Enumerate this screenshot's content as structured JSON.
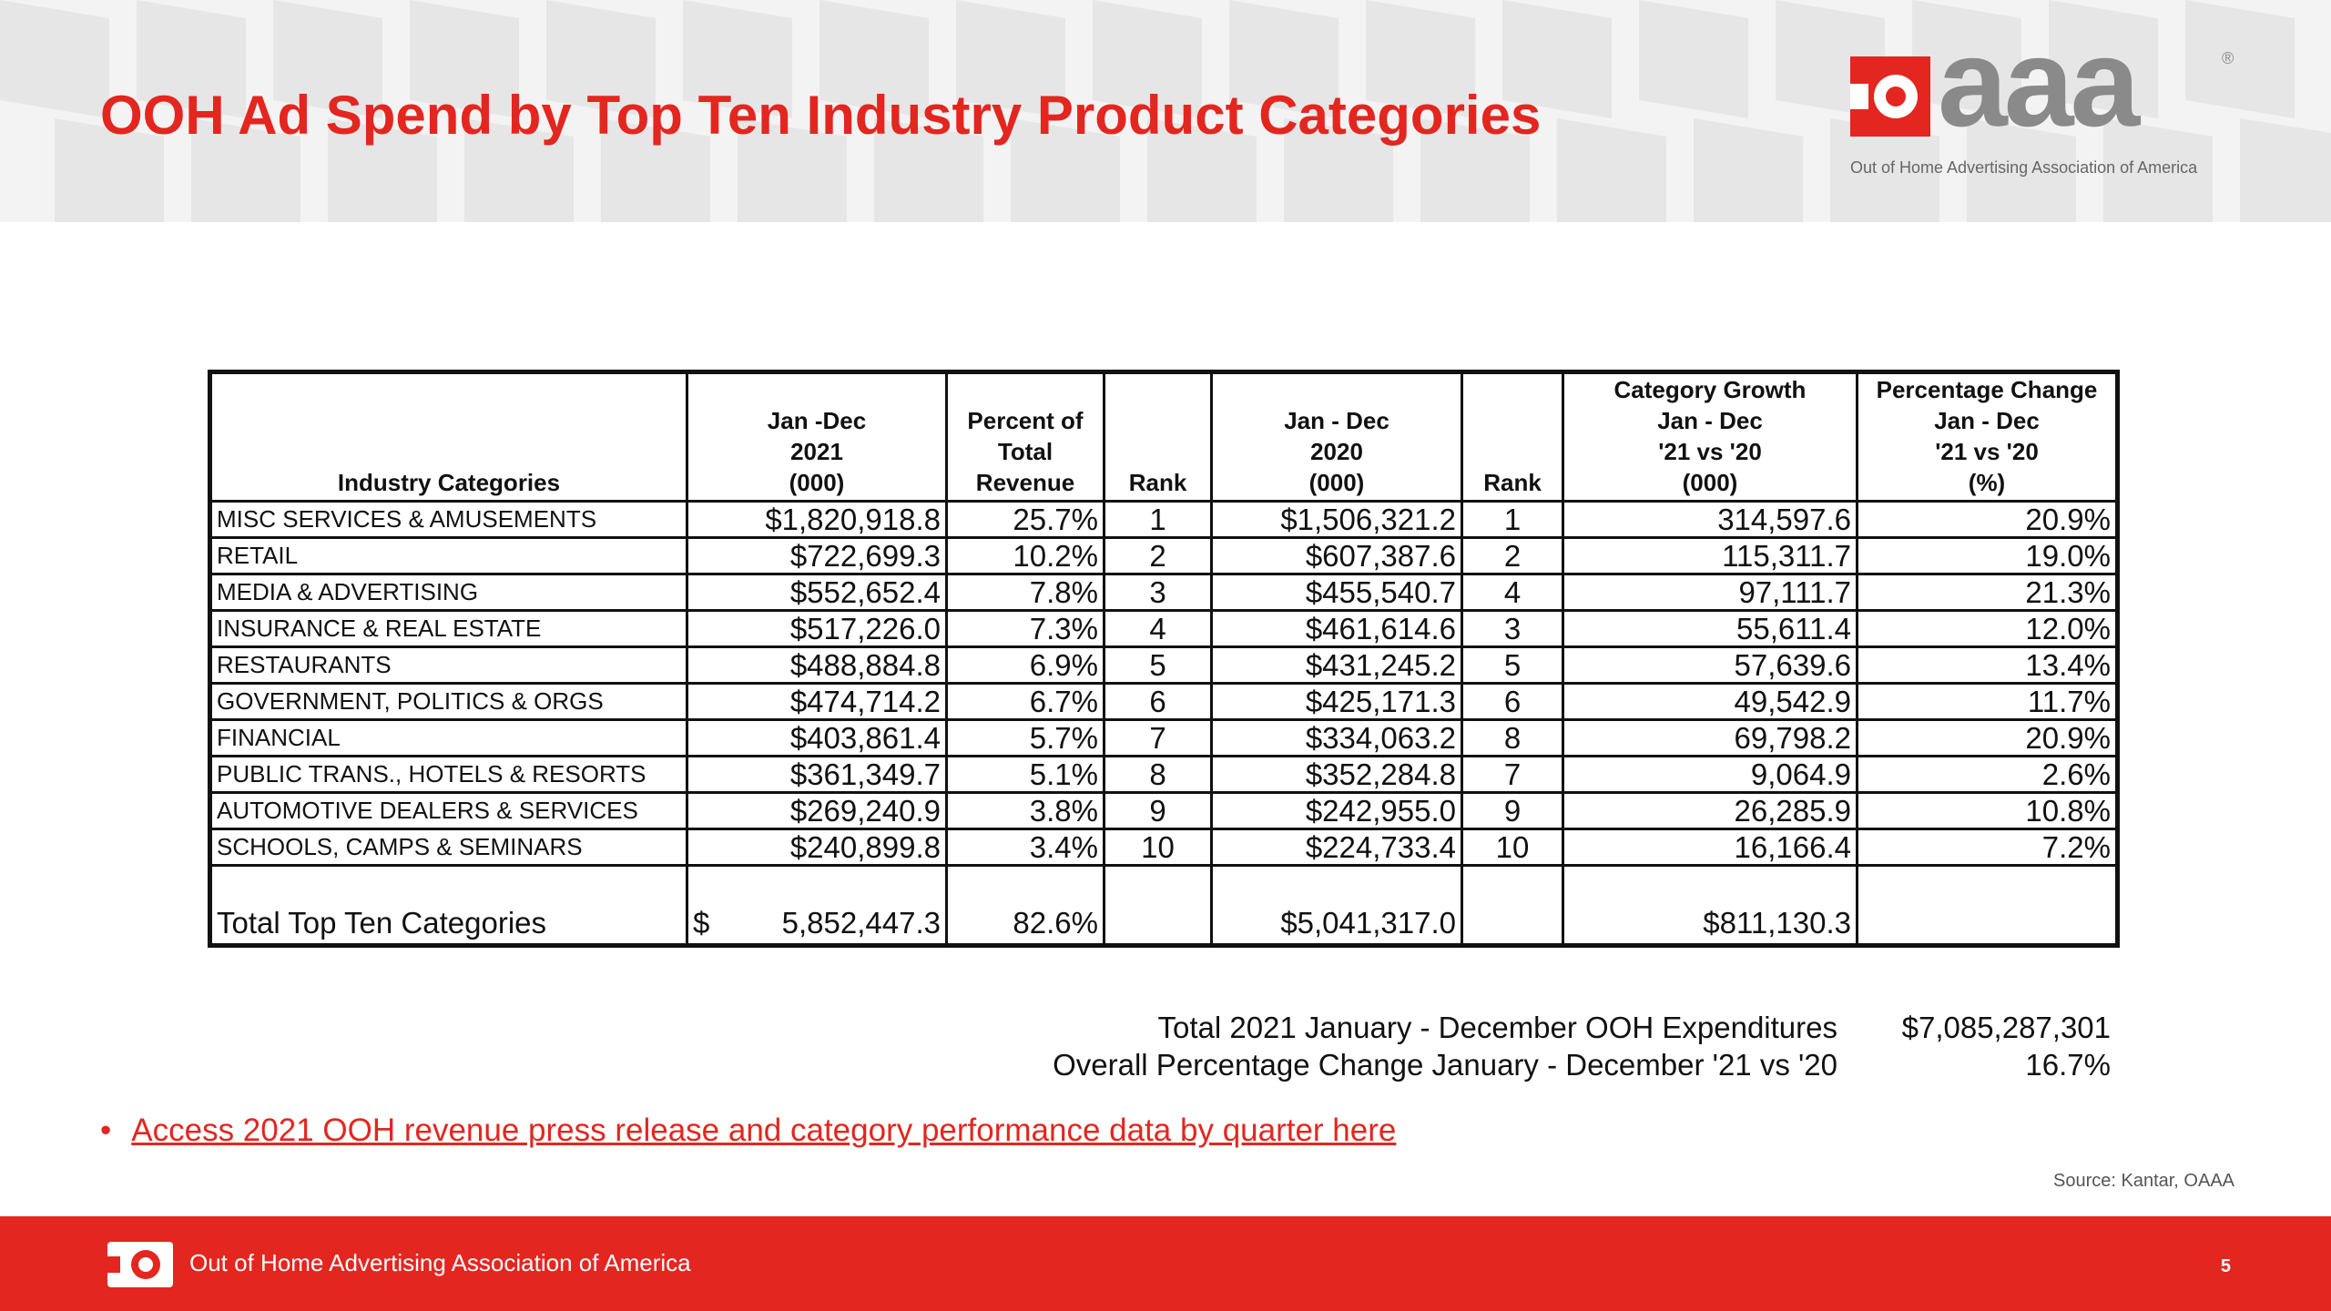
{
  "title": "OOH Ad Spend by Top Ten Industry Product Categories",
  "logo": {
    "wordmark": "aaa",
    "registered": "®",
    "tagline": "Out of Home Advertising Association of America"
  },
  "table": {
    "headers": [
      [
        "Industry Categories"
      ],
      [
        "Jan -Dec",
        "2021",
        "(000)"
      ],
      [
        "Percent of",
        "Total",
        "Revenue"
      ],
      [
        "Rank"
      ],
      [
        "Jan - Dec",
        "2020",
        "(000)"
      ],
      [
        "Rank"
      ],
      [
        "Category Growth",
        "Jan - Dec",
        "'21 vs '20",
        "(000)"
      ],
      [
        "Percentage Change",
        "Jan - Dec",
        "'21 vs '20",
        "(%)"
      ]
    ],
    "rows": [
      [
        "MISC SERVICES & AMUSEMENTS",
        "$1,820,918.8",
        "25.7%",
        "1",
        "$1,506,321.2",
        "1",
        "314,597.6",
        "20.9%"
      ],
      [
        "RETAIL",
        "$722,699.3",
        "10.2%",
        "2",
        "$607,387.6",
        "2",
        "115,311.7",
        "19.0%"
      ],
      [
        "MEDIA & ADVERTISING",
        "$552,652.4",
        "7.8%",
        "3",
        "$455,540.7",
        "4",
        "97,111.7",
        "21.3%"
      ],
      [
        "INSURANCE & REAL ESTATE",
        "$517,226.0",
        "7.3%",
        "4",
        "$461,614.6",
        "3",
        "55,611.4",
        "12.0%"
      ],
      [
        "RESTAURANTS",
        "$488,884.8",
        "6.9%",
        "5",
        "$431,245.2",
        "5",
        "57,639.6",
        "13.4%"
      ],
      [
        "GOVERNMENT, POLITICS & ORGS",
        "$474,714.2",
        "6.7%",
        "6",
        "$425,171.3",
        "6",
        "49,542.9",
        "11.7%"
      ],
      [
        "FINANCIAL",
        "$403,861.4",
        "5.7%",
        "7",
        "$334,063.2",
        "8",
        "69,798.2",
        "20.9%"
      ],
      [
        "PUBLIC TRANS., HOTELS & RESORTS",
        "$361,349.7",
        "5.1%",
        "8",
        "$352,284.8",
        "7",
        "9,064.9",
        "2.6%"
      ],
      [
        "AUTOMOTIVE DEALERS & SERVICES",
        "$269,240.9",
        "3.8%",
        "9",
        "$242,955.0",
        "9",
        "26,285.9",
        "10.8%"
      ],
      [
        "SCHOOLS, CAMPS & SEMINARS",
        "$240,899.8",
        "3.4%",
        "10",
        "$224,733.4",
        "10",
        "16,166.4",
        "7.2%"
      ]
    ],
    "total": {
      "label": "Total Top Ten Categories",
      "dollar_sign": "$",
      "spend_2021": "5,852,447.3",
      "percent": "82.6%",
      "rank_2021": "",
      "spend_2020": "$5,041,317.0",
      "rank_2020": "",
      "growth": "$811,130.3",
      "pct_change": ""
    }
  },
  "summary": {
    "total_label": "Total 2021 January - December OOH Expenditures",
    "total_value": "$7,085,287,301",
    "change_label": "Overall Percentage Change January - December '21 vs '20",
    "change_value": "16.7%"
  },
  "link": {
    "bullet": "•",
    "text": "Access 2021 OOH revenue press release and category performance data by quarter here"
  },
  "source": "Source: Kantar, OAAA",
  "footer": {
    "org": "Out of Home Advertising Association of America",
    "page": "5"
  },
  "colors": {
    "brand_red": "#e3261f",
    "logo_gray": "#8a8a8a",
    "header_band": "#f3f3f3"
  }
}
